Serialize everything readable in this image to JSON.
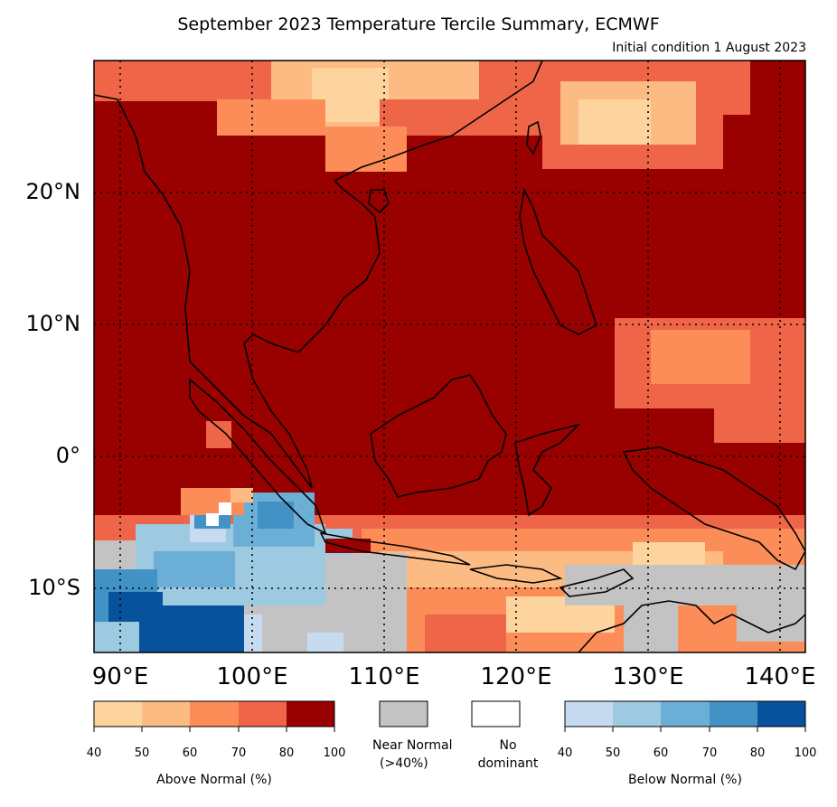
{
  "title": "September 2023 Temperature Tercile Summary, ECMWF",
  "subtitle": "Initial condition 1 August 2023",
  "map": {
    "lon_range": [
      88,
      142
    ],
    "lat_range": [
      -15,
      30
    ],
    "lat_labels": [
      "20°N",
      "10°N",
      "0°",
      "10°S"
    ],
    "lon_labels": [
      "90°E",
      "100°E",
      "110°E",
      "120°E",
      "130°E",
      "140°E"
    ],
    "palette": {
      "above": [
        "#fdd49e",
        "#fdbb84",
        "#fc8d59",
        "#ef6548",
        "#990000"
      ],
      "near_normal": "#c3c3c3",
      "no_dominant": "#ffffff",
      "below": [
        "#c6dbef",
        "#9ecae1",
        "#6baed6",
        "#4292c6",
        "#08519c"
      ]
    }
  },
  "colorbars": {
    "above": {
      "caption": "Above Normal (%)",
      "ticks": [
        "40",
        "50",
        "60",
        "70",
        "80",
        "100"
      ]
    },
    "near_normal": {
      "caption_line1": "Near Normal",
      "caption_line2": "(>40%)"
    },
    "no_dominant": {
      "caption_line1": "No",
      "caption_line2": "dominant"
    },
    "below": {
      "caption": "Below Normal (%)",
      "ticks": [
        "40",
        "50",
        "60",
        "70",
        "80",
        "100"
      ]
    }
  }
}
